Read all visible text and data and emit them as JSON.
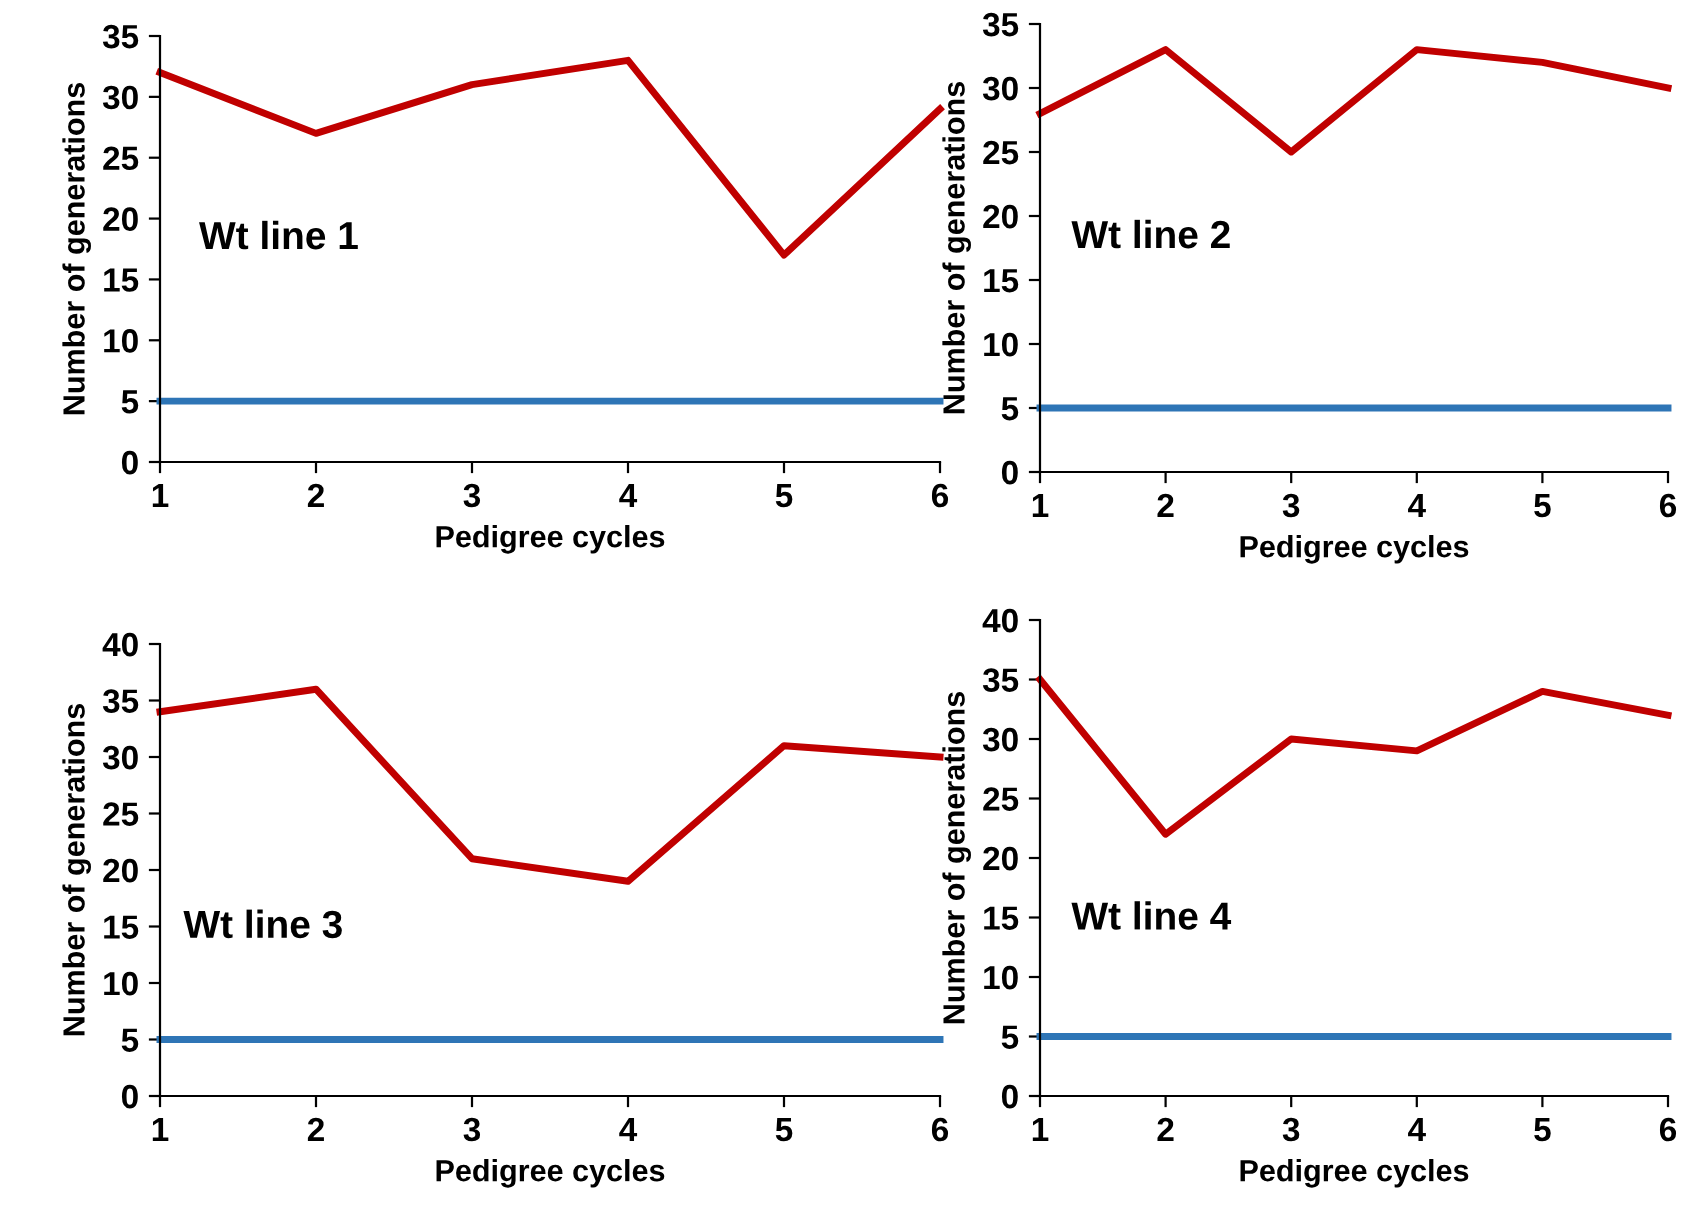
{
  "chart_data": [
    {
      "type": "line",
      "x": [
        1,
        2,
        3,
        4,
        5,
        6
      ],
      "xlim": [
        1,
        6
      ],
      "xticks": [
        1,
        2,
        3,
        4,
        5,
        6
      ],
      "ylim": [
        0,
        35
      ],
      "yticks": [
        0,
        5,
        10,
        15,
        20,
        25,
        30,
        35
      ],
      "xlabel": "Pedigree cycles",
      "ylabel": "Number of generations",
      "annotations": [
        "Wt line 1"
      ],
      "series": [
        {
          "color": "#c00000",
          "values": [
            32,
            27,
            31,
            33,
            17,
            29
          ]
        },
        {
          "color": "#2e75b6",
          "values": [
            5,
            5,
            5,
            5,
            5,
            5
          ]
        }
      ]
    },
    {
      "type": "line",
      "x": [
        1,
        2,
        3,
        4,
        5,
        6
      ],
      "xlim": [
        1,
        6
      ],
      "xticks": [
        1,
        2,
        3,
        4,
        5,
        6
      ],
      "ylim": [
        0,
        35
      ],
      "yticks": [
        0,
        5,
        10,
        15,
        20,
        25,
        30,
        35
      ],
      "xlabel": "Pedigree cycles",
      "ylabel": "Number of generations",
      "annotations": [
        "Wt line 2"
      ],
      "series": [
        {
          "color": "#c00000",
          "values": [
            28,
            33,
            25,
            33,
            32,
            30
          ]
        },
        {
          "color": "#2e75b6",
          "values": [
            5,
            5,
            5,
            5,
            5,
            5
          ]
        }
      ]
    },
    {
      "type": "line",
      "x": [
        1,
        2,
        3,
        4,
        5,
        6
      ],
      "xlim": [
        1,
        6
      ],
      "xticks": [
        1,
        2,
        3,
        4,
        5,
        6
      ],
      "ylim": [
        0,
        40
      ],
      "yticks": [
        0,
        5,
        10,
        15,
        20,
        25,
        30,
        35,
        40
      ],
      "xlabel": "Pedigree cycles",
      "ylabel": "Number of generations",
      "annotations": [
        "Wt line 3"
      ],
      "series": [
        {
          "color": "#c00000",
          "values": [
            34,
            36,
            21,
            19,
            31,
            30
          ]
        },
        {
          "color": "#2e75b6",
          "values": [
            5,
            5,
            5,
            5,
            5,
            5
          ]
        }
      ]
    },
    {
      "type": "line",
      "x": [
        1,
        2,
        3,
        4,
        5,
        6
      ],
      "xlim": [
        1,
        6
      ],
      "xticks": [
        1,
        2,
        3,
        4,
        5,
        6
      ],
      "ylim": [
        0,
        40
      ],
      "yticks": [
        0,
        5,
        10,
        15,
        20,
        25,
        30,
        35,
        40
      ],
      "xlabel": "Pedigree cycles",
      "ylabel": "Number of generations",
      "annotations": [
        "Wt line 4"
      ],
      "series": [
        {
          "color": "#c00000",
          "values": [
            35,
            22,
            30,
            29,
            34,
            32
          ]
        },
        {
          "color": "#2e75b6",
          "values": [
            5,
            5,
            5,
            5,
            5,
            5
          ]
        }
      ]
    }
  ]
}
